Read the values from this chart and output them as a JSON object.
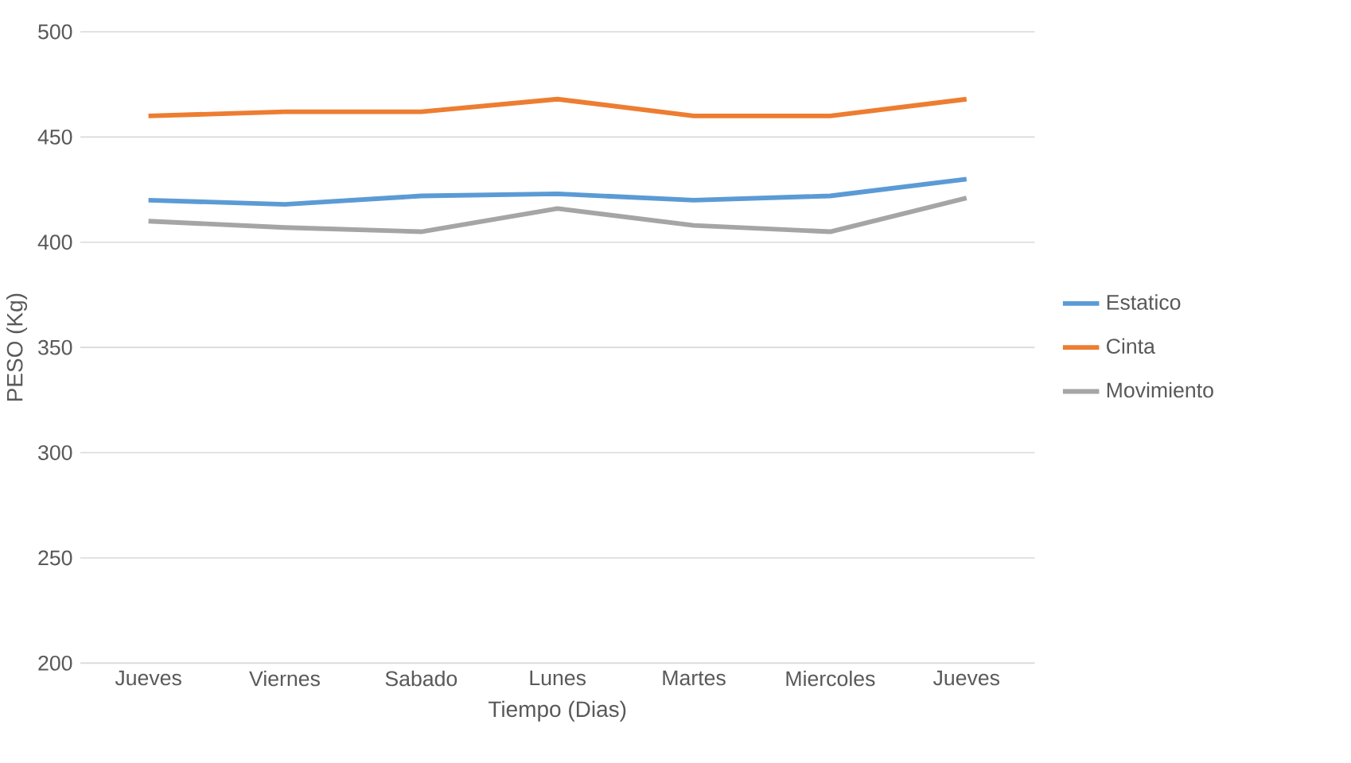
{
  "chart_data": {
    "type": "line",
    "xlabel": "Tiempo (Dias)",
    "ylabel": "PESO (Kg)",
    "categories": [
      "Jueves",
      "Viernes",
      "Sabado",
      "Lunes",
      "Martes",
      "Miercoles",
      "Jueves"
    ],
    "series": [
      {
        "name": "Estatico",
        "color": "#5b9bd5",
        "values": [
          420,
          418,
          422,
          423,
          420,
          422,
          430
        ]
      },
      {
        "name": "Cinta",
        "color": "#ed7d31",
        "values": [
          460,
          462,
          462,
          468,
          460,
          460,
          468
        ]
      },
      {
        "name": "Movimiento",
        "color": "#a5a5a5",
        "values": [
          410,
          407,
          405,
          416,
          408,
          405,
          421
        ]
      }
    ],
    "ylim": [
      200,
      500
    ],
    "yticks": [
      200,
      250,
      300,
      350,
      400,
      450,
      500
    ],
    "grid": "y",
    "legend": "right",
    "marker": "none",
    "line_style": "solid"
  }
}
